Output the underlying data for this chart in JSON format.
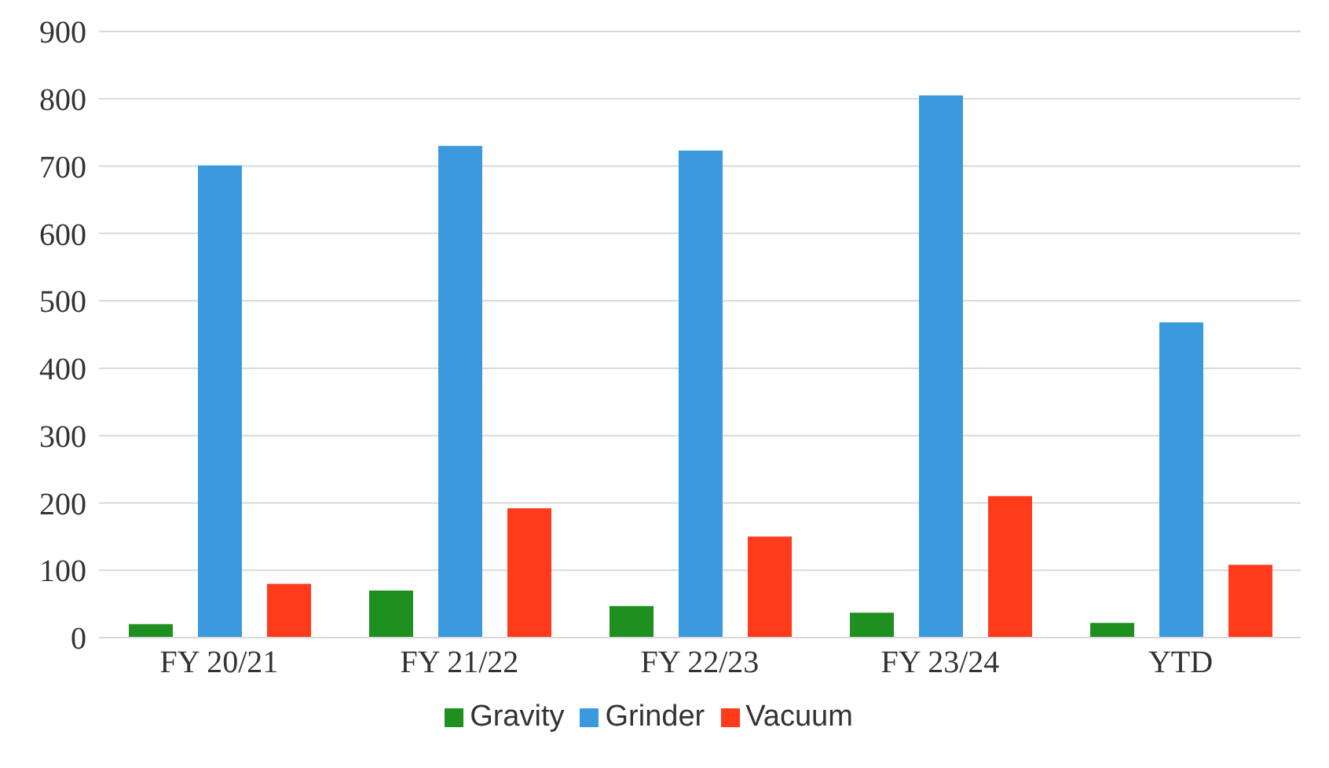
{
  "chart_data": {
    "type": "bar",
    "categories": [
      "FY 20/21",
      "FY 21/22",
      "FY 22/23",
      "FY 23/24",
      "YTD"
    ],
    "series": [
      {
        "name": "Gravity",
        "color": "#1f8f1f",
        "values": [
          20,
          70,
          47,
          37,
          22
        ]
      },
      {
        "name": "Grinder",
        "color": "#3b9ade",
        "values": [
          701,
          730,
          723,
          805,
          468
        ]
      },
      {
        "name": "Vacuum",
        "color": "#ff3b1c",
        "values": [
          80,
          192,
          150,
          210,
          108
        ]
      }
    ],
    "ylim": [
      0,
      900
    ],
    "yticks": [
      0,
      100,
      200,
      300,
      400,
      500,
      600,
      700,
      800,
      900
    ],
    "grid": "y",
    "legend": "bottom"
  }
}
